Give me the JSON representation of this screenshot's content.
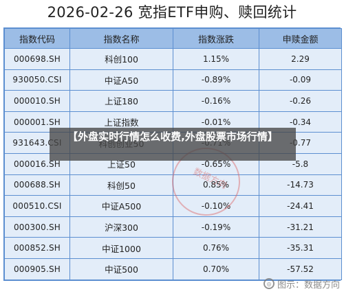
{
  "title": "2026-02-26 宽指ETF申购、赎回统计",
  "table": {
    "headers": [
      "指数代码",
      "指数名称",
      "指数涨跌",
      "申赎金额"
    ],
    "rows": [
      [
        "000698.SH",
        "科创100",
        "1.15%",
        "2.29"
      ],
      [
        "930050.CSI",
        "中证A50",
        "-0.89%",
        "-0.09"
      ],
      [
        "000010.SH",
        "上证180",
        "-0.16%",
        "-0.26"
      ],
      [
        "000001.SH",
        "上证指数",
        "-0.01%",
        "-0.34"
      ],
      [
        "931643.CSI",
        "科创创业50",
        "-0.71%",
        "-0.77"
      ],
      [
        "000016.SH",
        "上证50",
        "-0.65%",
        "-5.8"
      ],
      [
        "000688.SH",
        "科创50",
        "0.85%",
        "-14.73"
      ],
      [
        "000510.CSI",
        "中证A500",
        "-0.10%",
        "-24.41"
      ],
      [
        "000300.SH",
        "沪深300",
        "-0.19%",
        "-31.21"
      ],
      [
        "000852.SH",
        "中证1000",
        "0.76%",
        "-35.31"
      ],
      [
        "000905.SH",
        "中证500",
        "0.70%",
        "-57.52"
      ]
    ]
  },
  "overlay": {
    "banner_text": "【外盘实时行情怎么收费,外盘股票市场行情】"
  },
  "watermark": {
    "stamp_text": "数据方向",
    "brand_text": "图示：数据方向",
    "brand_icon": "logo-icon"
  }
}
